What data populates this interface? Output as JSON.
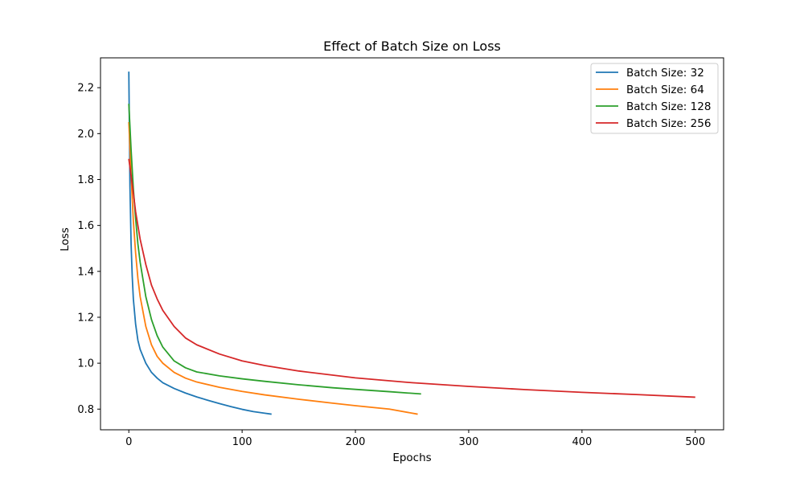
{
  "chart_data": {
    "type": "line",
    "title": "Effect of Batch Size on Loss",
    "xlabel": "Epochs",
    "ylabel": "Loss",
    "xlim": [
      -25,
      525
    ],
    "ylim": [
      0.71,
      2.33
    ],
    "xticks": [
      0,
      100,
      200,
      300,
      400,
      500
    ],
    "yticks": [
      0.8,
      1.0,
      1.2,
      1.4,
      1.6,
      1.8,
      2.0,
      2.2
    ],
    "grid": false,
    "legend_position": "top-right",
    "series": [
      {
        "name": "Batch Size: 32",
        "color": "#1f77b4",
        "x": [
          0,
          1,
          2,
          3,
          4,
          6,
          8,
          10,
          15,
          20,
          25,
          30,
          40,
          50,
          60,
          70,
          80,
          90,
          100,
          110,
          120,
          126
        ],
        "y": [
          2.27,
          1.77,
          1.52,
          1.38,
          1.28,
          1.17,
          1.1,
          1.06,
          1.0,
          0.96,
          0.935,
          0.915,
          0.89,
          0.87,
          0.853,
          0.838,
          0.824,
          0.811,
          0.799,
          0.789,
          0.782,
          0.778
        ]
      },
      {
        "name": "Batch Size: 64",
        "color": "#ff7f0e",
        "x": [
          0,
          2,
          4,
          6,
          8,
          10,
          15,
          20,
          25,
          30,
          40,
          50,
          60,
          80,
          100,
          120,
          150,
          180,
          200,
          230,
          255
        ],
        "y": [
          2.05,
          1.82,
          1.62,
          1.48,
          1.37,
          1.29,
          1.16,
          1.08,
          1.03,
          1.0,
          0.96,
          0.935,
          0.918,
          0.895,
          0.877,
          0.862,
          0.843,
          0.826,
          0.815,
          0.8,
          0.778
        ]
      },
      {
        "name": "Batch Size: 128",
        "color": "#2ca02c",
        "x": [
          0,
          2,
          4,
          6,
          8,
          10,
          15,
          20,
          25,
          30,
          40,
          50,
          60,
          80,
          100,
          120,
          150,
          180,
          200,
          230,
          258
        ],
        "y": [
          2.13,
          1.93,
          1.76,
          1.63,
          1.52,
          1.44,
          1.29,
          1.19,
          1.12,
          1.07,
          1.01,
          0.98,
          0.962,
          0.945,
          0.932,
          0.921,
          0.906,
          0.893,
          0.886,
          0.876,
          0.866
        ]
      },
      {
        "name": "Batch Size: 256",
        "color": "#d62728",
        "x": [
          0,
          3,
          6,
          10,
          15,
          20,
          25,
          30,
          40,
          50,
          60,
          80,
          100,
          120,
          150,
          200,
          250,
          300,
          350,
          400,
          450,
          500
        ],
        "y": [
          1.89,
          1.78,
          1.66,
          1.54,
          1.43,
          1.34,
          1.28,
          1.23,
          1.16,
          1.11,
          1.08,
          1.04,
          1.01,
          0.99,
          0.966,
          0.936,
          0.915,
          0.899,
          0.885,
          0.873,
          0.863,
          0.852
        ]
      }
    ]
  }
}
